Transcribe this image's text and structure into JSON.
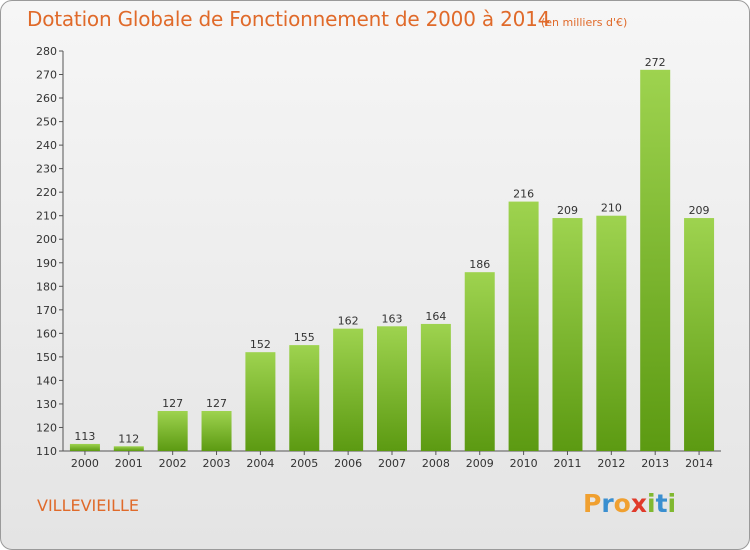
{
  "title": "Dotation Globale de Fonctionnement de 2000 à 2014",
  "subtitle": "(en milliers d'€)",
  "commune": "VILLEVIEILLE",
  "logo": {
    "letters": [
      "P",
      "r",
      "o",
      "x",
      "i",
      "t",
      "i"
    ],
    "colors": [
      "#f0a030",
      "#3a8fd0",
      "#f0a030",
      "#e03a2a",
      "#80b830",
      "#3a8fd0",
      "#80b830"
    ]
  },
  "colors": {
    "text_accent": "#e06a2a",
    "bar_top": "#9ed34f",
    "bar_bottom": "#5c9a12"
  },
  "chart_data": {
    "type": "bar",
    "categories": [
      "2000",
      "2001",
      "2002",
      "2003",
      "2004",
      "2005",
      "2006",
      "2007",
      "2008",
      "2009",
      "2010",
      "2011",
      "2012",
      "2013",
      "2014"
    ],
    "values": [
      113,
      112,
      127,
      127,
      152,
      155,
      162,
      163,
      164,
      186,
      216,
      209,
      210,
      272,
      209
    ],
    "data_labels": [
      "113",
      "112",
      "127",
      "127",
      "152",
      "155",
      "162",
      "163",
      "164",
      "186",
      "216",
      "209",
      "210",
      "272",
      "209"
    ],
    "ylim": [
      110,
      280
    ],
    "yticks": [
      110,
      120,
      130,
      140,
      150,
      160,
      170,
      180,
      190,
      200,
      210,
      220,
      230,
      240,
      250,
      260,
      270,
      280
    ],
    "grid": false,
    "legend": "none"
  }
}
